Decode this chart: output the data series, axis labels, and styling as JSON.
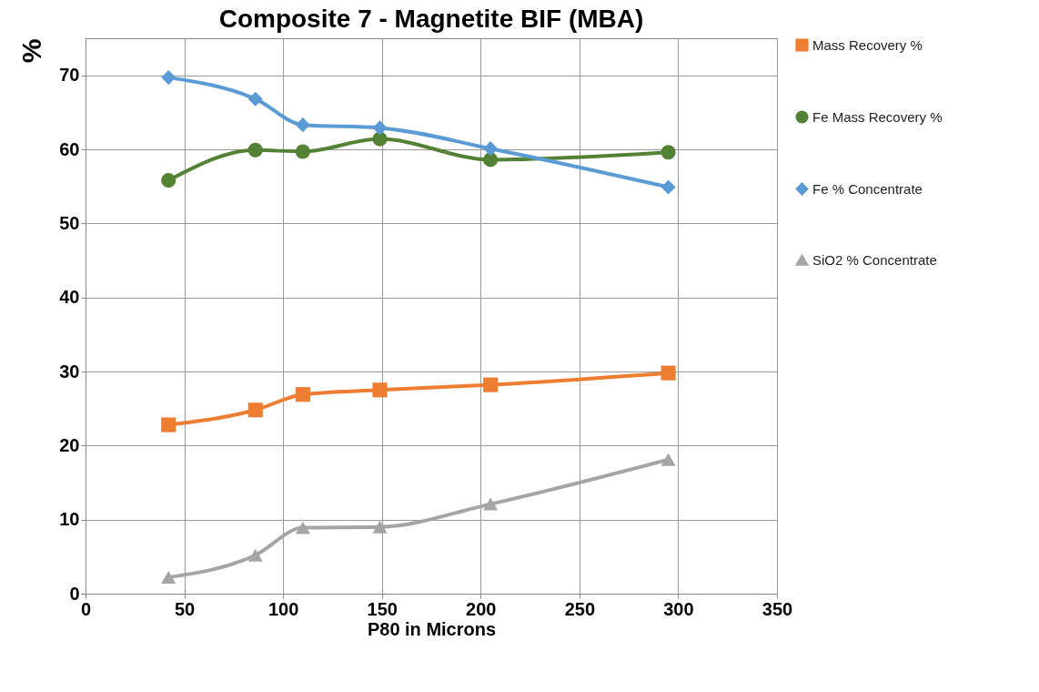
{
  "chart_data": {
    "type": "line",
    "title": "Composite 7 - Magnetite BIF (MBA)",
    "xlabel": "P80 in Microns",
    "ylabel": "%",
    "xlim": [
      0,
      350
    ],
    "xticks": [
      0,
      50,
      100,
      150,
      200,
      250,
      300,
      350
    ],
    "ylim": [
      0,
      75
    ],
    "yticks": [
      0,
      10,
      20,
      30,
      40,
      50,
      60,
      70
    ],
    "grid": true,
    "legend": "right",
    "series": [
      {
        "name": "Mass Recovery %",
        "color": "#ed7d31",
        "marker": "square",
        "x": [
          42,
          86,
          110,
          149,
          205,
          295
        ],
        "values": [
          22.8,
          24.8,
          26.9,
          27.5,
          28.2,
          29.8
        ]
      },
      {
        "name": "Fe Mass Recovery %",
        "color": "#548235",
        "marker": "circle",
        "x": [
          42,
          86,
          110,
          149,
          205,
          295
        ],
        "values": [
          55.8,
          59.9,
          59.7,
          61.4,
          58.6,
          59.6
        ]
      },
      {
        "name": "Fe % Concentrate",
        "color": "#5b9bd5",
        "marker": "diamond",
        "x": [
          42,
          86,
          110,
          149,
          205,
          295
        ],
        "values": [
          69.7,
          66.8,
          63.3,
          62.9,
          60.1,
          54.9
        ]
      },
      {
        "name": "SiO2 % Concentrate",
        "color": "#a5a5a5",
        "marker": "triangle",
        "x": [
          42,
          86,
          110,
          149,
          205,
          295
        ],
        "values": [
          2.2,
          5.2,
          8.9,
          9.0,
          12.1,
          18.1
        ]
      }
    ]
  }
}
